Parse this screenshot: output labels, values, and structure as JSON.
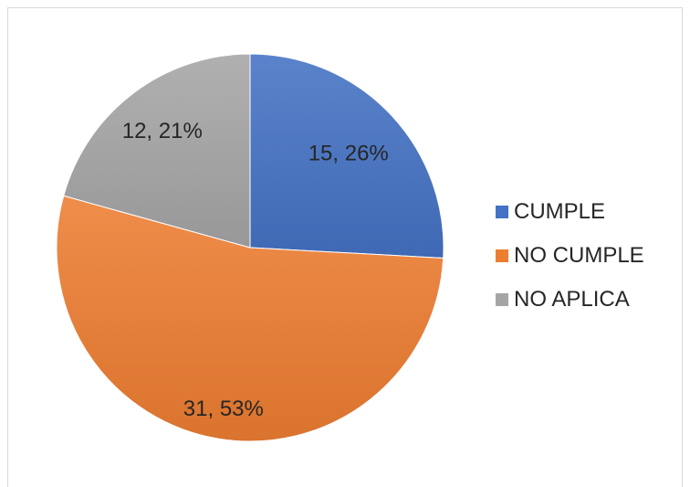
{
  "chart_data": {
    "type": "pie",
    "title": "",
    "categories": [
      "CUMPLE",
      "NO CUMPLE",
      "NO APLICA"
    ],
    "values": [
      15,
      31,
      12
    ],
    "percentages": [
      26,
      53,
      21
    ],
    "data_labels": [
      "15, 26%",
      "31, 53%",
      "12, 21%"
    ],
    "colors": [
      "#4472c4",
      "#ed7d31",
      "#a5a5a5"
    ],
    "legend_position": "right",
    "start_angle_deg": 0,
    "direction": "clockwise"
  }
}
